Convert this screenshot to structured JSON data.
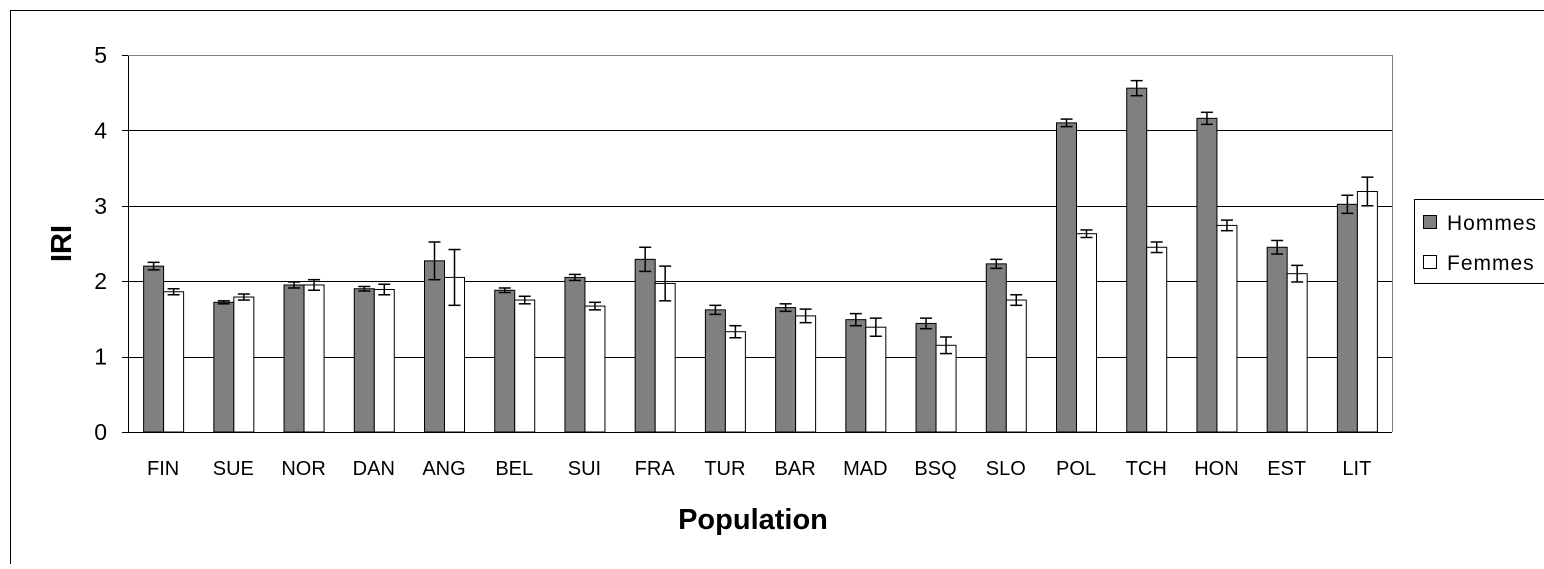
{
  "chart_data": {
    "type": "bar",
    "xlabel": "Population",
    "ylabel": "IRI",
    "ylim": [
      0,
      5
    ],
    "yticks": [
      0,
      1,
      2,
      3,
      4,
      5
    ],
    "grid": true,
    "legend_position": "right",
    "categories": [
      "FIN",
      "SUE",
      "NOR",
      "DAN",
      "ANG",
      "BEL",
      "SUI",
      "FRA",
      "TUR",
      "BAR",
      "MAD",
      "BSQ",
      "SLO",
      "POL",
      "TCH",
      "HON",
      "EST",
      "LIT"
    ],
    "series": [
      {
        "name": "Hommes",
        "color": "#808080",
        "values": [
          2.2,
          1.72,
          1.95,
          1.9,
          2.27,
          1.88,
          2.05,
          2.29,
          1.62,
          1.65,
          1.49,
          1.44,
          2.23,
          4.1,
          4.56,
          4.16,
          2.45,
          3.02
        ],
        "errors": [
          0.05,
          0.02,
          0.04,
          0.03,
          0.25,
          0.03,
          0.04,
          0.16,
          0.06,
          0.05,
          0.08,
          0.07,
          0.06,
          0.05,
          0.1,
          0.08,
          0.09,
          0.12
        ]
      },
      {
        "name": "Femmes",
        "color": "#ffffff",
        "values": [
          1.86,
          1.79,
          1.95,
          1.89,
          2.05,
          1.75,
          1.67,
          1.97,
          1.33,
          1.54,
          1.39,
          1.15,
          1.75,
          2.63,
          2.45,
          2.74,
          2.1,
          3.19
        ],
        "errors": [
          0.04,
          0.04,
          0.07,
          0.07,
          0.37,
          0.05,
          0.05,
          0.23,
          0.08,
          0.09,
          0.12,
          0.11,
          0.07,
          0.05,
          0.07,
          0.07,
          0.11,
          0.19
        ]
      }
    ]
  }
}
